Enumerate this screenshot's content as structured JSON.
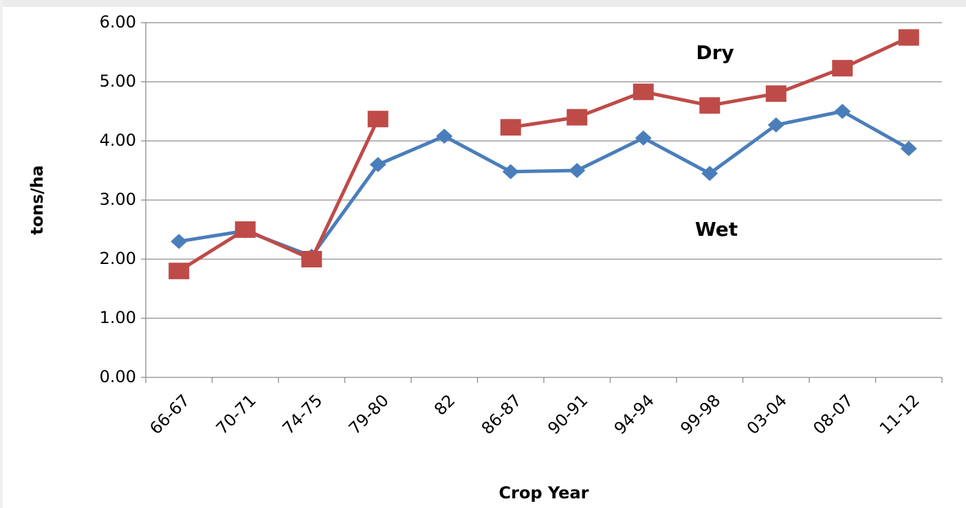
{
  "chart_data": {
    "type": "line",
    "categories": [
      "66-67",
      "70-71",
      "74-75",
      "79-80",
      "82",
      "86-87",
      "90-91",
      "94-94",
      "99-98",
      "03-04",
      "08-07",
      "11-12"
    ],
    "series": [
      {
        "name": "Wet",
        "color": "#4a7ebb",
        "marker": "diamond",
        "values": [
          2.3,
          2.48,
          2.05,
          3.6,
          4.08,
          3.48,
          3.5,
          4.05,
          3.45,
          4.27,
          4.5,
          3.87
        ]
      },
      {
        "name": "Dry",
        "color": "#be4b48",
        "marker": "square",
        "values": [
          1.8,
          2.5,
          2.0,
          4.37,
          null,
          4.23,
          4.4,
          4.83,
          4.6,
          4.8,
          5.23,
          5.75
        ]
      }
    ],
    "x_label": "Crop Year",
    "y_label": "tons/ha",
    "ylim": [
      0,
      6
    ],
    "yticks": [
      {
        "value": 0,
        "label": "0.00"
      },
      {
        "value": 1,
        "label": "1.00"
      },
      {
        "value": 2,
        "label": "2.00"
      },
      {
        "value": 3,
        "label": "3.00"
      },
      {
        "value": 4,
        "label": "4.00"
      },
      {
        "value": 5,
        "label": "5.00"
      },
      {
        "value": 6,
        "label": "6.00"
      }
    ],
    "grid": true
  }
}
